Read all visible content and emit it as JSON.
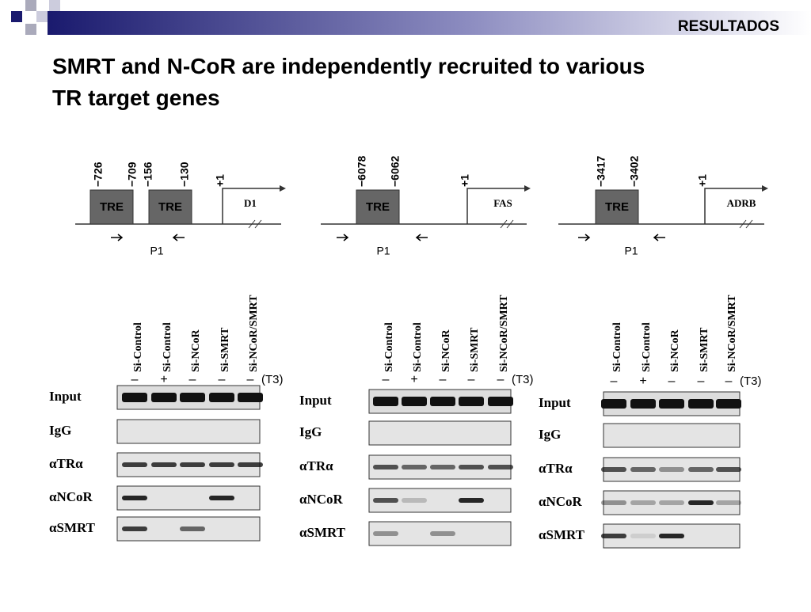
{
  "header": "RESULTADOS",
  "title": "SMRT and N-CoR are independently recruited to various TR target genes",
  "panels": [
    {
      "positions": [
        "−726",
        "−709",
        "−156",
        "−130"
      ],
      "tre": [
        "TRE",
        "TRE"
      ],
      "tss": "+1",
      "gene": "D1",
      "primer": "P1",
      "lanes": [
        "Si-Control",
        "Si-Control",
        "Si-NCoR",
        "Si-SMRT",
        "Si-NCoR/SMRT"
      ],
      "treatment": [
        "–",
        "+",
        "–",
        "–",
        "–"
      ],
      "treatment_label": "(T3)",
      "rows": [
        "Input",
        "IgG",
        "αTRα",
        "αNCoR",
        "αSMRT"
      ]
    },
    {
      "positions": [
        "−6078",
        "−6062"
      ],
      "tre": [
        "TRE"
      ],
      "tss": "+1",
      "gene": "FAS",
      "primer": "P1",
      "lanes": [
        "Si-Control",
        "Si-Control",
        "Si-NCoR",
        "Si-SMRT",
        "Si-NCoR/SMRT"
      ],
      "treatment": [
        "–",
        "+",
        "–",
        "–",
        "–"
      ],
      "treatment_label": "(T3)",
      "rows": [
        "Input",
        "IgG",
        "αTRα",
        "αNCoR",
        "αSMRT"
      ]
    },
    {
      "positions": [
        "−3417",
        "−3402"
      ],
      "tre": [
        "TRE"
      ],
      "tss": "+1",
      "gene": "ADRB",
      "primer": "P1",
      "lanes": [
        "Si-Control",
        "Si-Control",
        "Si-NCoR",
        "Si-SMRT",
        "Si-NCoR/SMRT"
      ],
      "treatment": [
        "–",
        "+",
        "–",
        "–",
        "–"
      ],
      "treatment_label": "(T3)",
      "rows": [
        "Input",
        "IgG",
        "αTRα",
        "αNCoR",
        "αSMRT"
      ]
    }
  ]
}
